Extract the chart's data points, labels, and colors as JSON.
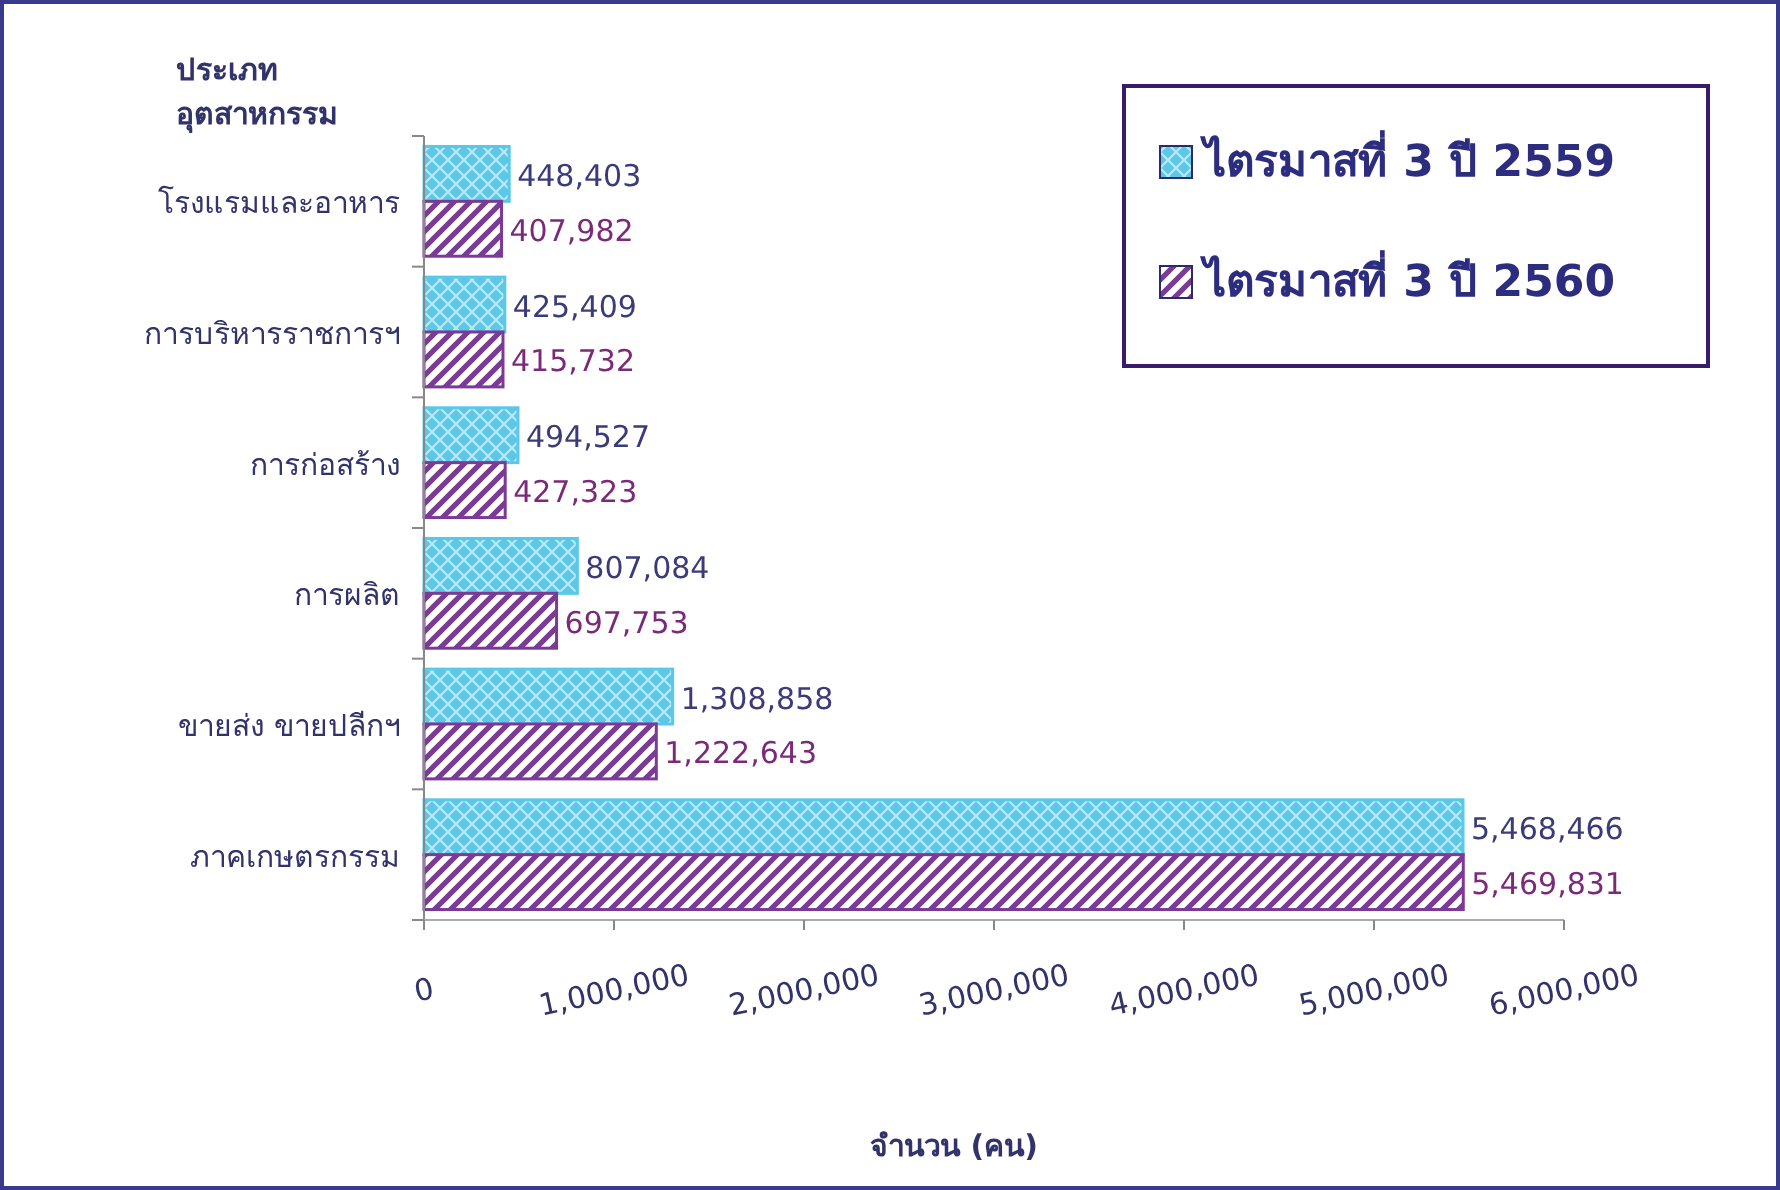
{
  "chart_data": {
    "type": "bar",
    "orientation": "horizontal",
    "ylabel": "ประเภท\nอุตสาหกรรม",
    "xlabel": "จำนวน (คน)",
    "categories": [
      "โรงแรมและอาหาร",
      "การบริหารราชการฯ",
      "การก่อสร้าง",
      "การผลิต",
      "ขายส่ง  ขายปลีกฯ",
      "ภาคเกษตรกรรม"
    ],
    "series": [
      {
        "name": "ไตรมาสที่ 3 ปี 2559",
        "color": "#5bc8e8",
        "values": [
          448403,
          425409,
          494527,
          807084,
          1308858,
          5468466
        ],
        "value_labels": [
          "448,403",
          "425,409",
          "494,527",
          "807,084",
          "1,308,858",
          "5,468,466"
        ]
      },
      {
        "name": "ไตรมาสที่ 3 ปี 2560",
        "color": "#7b3a96",
        "values": [
          407982,
          415732,
          427323,
          697753,
          1222643,
          5469831
        ],
        "value_labels": [
          "407,982",
          "415,732",
          "427,323",
          "697,753",
          "1,222,643",
          "5,469,831"
        ]
      }
    ],
    "xlim": [
      0,
      6000000
    ],
    "xticks": [
      0,
      {
        "value": 1000000,
        "label": "1,000,000"
      },
      {
        "value": 2000000,
        "label": "2,000,000"
      },
      {
        "value": 3000000,
        "label": "3,000,000"
      },
      {
        "value": 4000000,
        "label": "4,000,000"
      },
      {
        "value": 5000000,
        "label": "5,000,000"
      },
      {
        "value": 6000000,
        "label": "6,000,000"
      }
    ],
    "legend": "top right"
  }
}
